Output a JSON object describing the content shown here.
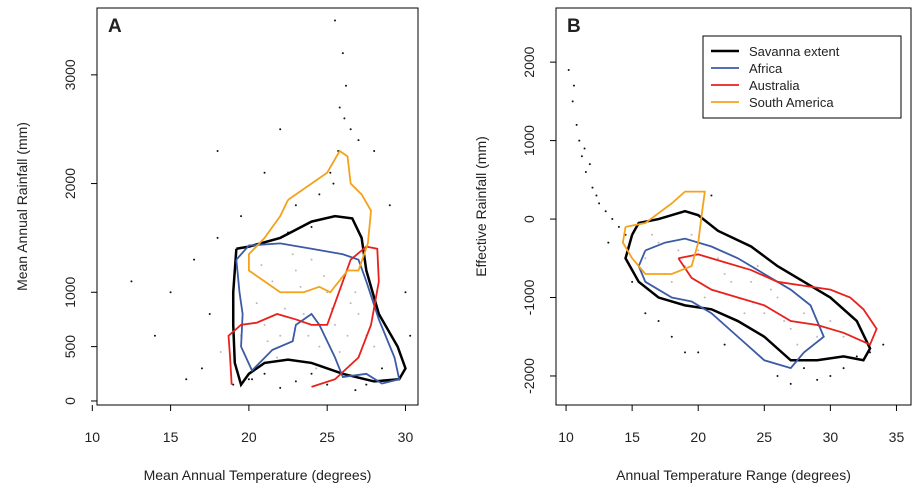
{
  "chart_data": [
    {
      "type": "scatter",
      "panel_label": "A",
      "x_label": "Mean Annual Temperature (degrees)",
      "y_label": "Mean Annual Rainfall (mm)",
      "xlim": [
        10.3,
        30.8
      ],
      "ylim": [
        -37,
        3615
      ],
      "xticks": [
        10,
        15,
        20,
        25,
        30
      ],
      "yticks": [
        0,
        500,
        1000,
        2000,
        3000
      ],
      "points": [
        {
          "color": "#bbbbbb",
          "x": [
            20.5,
            21,
            21.5,
            22,
            22.5,
            23,
            23.5,
            24,
            24.5,
            25,
            25.5,
            26,
            26.5,
            27,
            27.5,
            28,
            20.8,
            21.8,
            22.8,
            23.8,
            24.8,
            25.8,
            26.8,
            27.8,
            22.3,
            23.3,
            24.3,
            25.3,
            26.3,
            21.2,
            19.5,
            18.2
          ],
          "y": [
            900,
            700,
            1100,
            600,
            1000,
            1200,
            800,
            1300,
            500,
            1000,
            700,
            1100,
            900,
            800,
            600,
            500,
            1250,
            400,
            1350,
            600,
            1150,
            450,
            1000,
            700,
            850,
            1050,
            300,
            850,
            600,
            550,
            600,
            450
          ]
        },
        {
          "color": "#111111",
          "x": [
            15,
            16.5,
            17.5,
            18,
            12.5,
            14,
            16,
            17,
            19,
            20,
            21,
            22,
            23,
            24,
            25,
            25.5,
            26,
            26.2,
            25.8,
            26.5,
            27,
            28,
            29,
            30,
            30.3,
            24.5,
            25.2,
            25.7,
            26.1,
            25.4,
            23,
            19.5,
            18,
            21,
            22,
            28.5,
            29.5,
            27.5,
            26.8,
            24,
            22.5,
            20.2
          ],
          "y": [
            1000,
            1300,
            800,
            1500,
            1100,
            600,
            200,
            300,
            150,
            200,
            250,
            120,
            180,
            250,
            150,
            3500,
            3200,
            2900,
            2700,
            2500,
            2400,
            2300,
            1800,
            1000,
            600,
            1900,
            2100,
            2300,
            2600,
            2000,
            1800,
            1700,
            2300,
            2100,
            2500,
            300,
            200,
            150,
            100,
            1600,
            1550,
            200
          ]
        }
      ],
      "series": [
        {
          "name": "Savanna extent",
          "color": "#000000",
          "x": [
            19.2,
            20,
            22,
            24,
            25.5,
            26.6,
            27.2,
            27.5,
            28.3,
            29.5,
            30,
            29.6,
            28,
            26,
            24,
            22.5,
            21,
            20,
            19.5,
            19.1,
            19,
            19,
            19.2
          ],
          "y": [
            1400,
            1420,
            1500,
            1650,
            1700,
            1680,
            1500,
            1200,
            800,
            500,
            300,
            200,
            180,
            250,
            350,
            380,
            350,
            250,
            150,
            350,
            700,
            1000,
            1400
          ]
        },
        {
          "name": "Africa",
          "color": "#3b5ba5",
          "x": [
            19.2,
            20,
            22,
            24,
            26,
            27,
            27.5,
            28.3,
            29.3,
            29.6,
            28.5,
            27.5,
            26,
            25.5,
            24.5,
            24,
            23,
            22.8,
            21.5,
            20.2,
            19.5,
            19.6,
            19.4,
            19.2
          ],
          "y": [
            1300,
            1430,
            1450,
            1400,
            1350,
            1300,
            1100,
            750,
            400,
            200,
            160,
            250,
            220,
            400,
            700,
            800,
            700,
            550,
            470,
            280,
            500,
            800,
            1000,
            1300
          ]
        },
        {
          "name": "Australia",
          "color": "#e8211c",
          "x": [
            18.9,
            18.8,
            18.7,
            19.5,
            20.5,
            21.8,
            23,
            24,
            25,
            25.5,
            26,
            26.5,
            27.5,
            28.2,
            28.3,
            27.8,
            27,
            25.5,
            24
          ],
          "y": [
            150,
            400,
            600,
            700,
            720,
            800,
            750,
            700,
            700,
            900,
            1100,
            1300,
            1420,
            1400,
            1100,
            700,
            400,
            200,
            130
          ]
        },
        {
          "name": "South America",
          "color": "#f4a21c",
          "x": [
            22.5,
            23.5,
            25,
            25.8,
            26.3,
            26.5,
            27.2,
            27.8,
            27.6,
            27,
            26.3,
            25.2,
            24.5,
            23.5,
            22,
            21,
            20,
            20,
            21,
            22,
            22.5
          ],
          "y": [
            1850,
            1950,
            2100,
            2300,
            2250,
            2000,
            1900,
            1750,
            1450,
            1200,
            1200,
            1000,
            1050,
            1000,
            1000,
            1100,
            1200,
            1350,
            1500,
            1700,
            1850
          ]
        }
      ]
    },
    {
      "type": "scatter",
      "panel_label": "B",
      "x_label": "Annual Temperature Range (degrees)",
      "y_label": "Effective Rainfall (mm)",
      "xlim": [
        9.24,
        36.1
      ],
      "ylim": [
        -2370,
        2690
      ],
      "xticks": [
        10,
        15,
        20,
        25,
        30,
        35
      ],
      "yticks": [
        -2000,
        -1000,
        0,
        1000,
        2000
      ],
      "legend": "top-right",
      "points": [
        {
          "color": "#bbbbbb",
          "x": [
            16,
            17,
            18,
            19,
            20,
            21,
            22,
            23,
            24,
            25,
            26,
            27,
            28,
            29,
            17.5,
            19.5,
            21.5,
            23.5,
            25.5,
            27.5,
            18.5,
            20.5,
            22.5,
            24.5,
            26.5,
            16.5,
            30,
            31
          ],
          "y": [
            -500,
            -300,
            -800,
            -600,
            -400,
            -900,
            -700,
            -1000,
            -800,
            -1200,
            -1000,
            -1400,
            -1200,
            -1500,
            -700,
            -200,
            -500,
            -1200,
            -900,
            -1600,
            -400,
            -1000,
            -800,
            -600,
            -1300,
            -200,
            -1300,
            -1500
          ]
        },
        {
          "color": "#111111",
          "x": [
            10.2,
            10.5,
            10.8,
            11,
            11.2,
            11.5,
            12,
            12.5,
            13,
            13.5,
            14,
            14.5,
            11.8,
            12.3,
            13.2,
            10.6,
            11.4,
            15,
            16,
            18,
            20,
            22,
            26,
            28,
            30,
            32,
            33,
            34,
            27,
            29,
            31,
            19,
            21,
            17
          ],
          "y": [
            1900,
            1500,
            1200,
            1000,
            800,
            600,
            400,
            200,
            100,
            0,
            -100,
            -200,
            700,
            300,
            -300,
            1700,
            900,
            -800,
            -1200,
            -1500,
            -1700,
            -1600,
            -2000,
            -1900,
            -2000,
            -1750,
            -1700,
            -1600,
            -2100,
            -2050,
            -1900,
            -1700,
            300,
            -1300
          ]
        }
      ],
      "series": [
        {
          "name": "Savanna extent",
          "color": "#000000",
          "x": [
            15,
            15.5,
            17,
            19,
            20,
            21.5,
            24,
            26,
            28,
            30,
            32,
            33,
            32.5,
            31,
            29,
            27,
            25,
            23,
            21,
            19,
            17,
            15.5,
            14.5,
            15
          ],
          "y": [
            -200,
            -50,
            0,
            100,
            50,
            -150,
            -350,
            -600,
            -800,
            -1000,
            -1300,
            -1650,
            -1800,
            -1750,
            -1800,
            -1800,
            -1500,
            -1300,
            -1150,
            -1100,
            -1000,
            -800,
            -500,
            -200
          ]
        },
        {
          "name": "Africa",
          "color": "#3b5ba5",
          "x": [
            16,
            17.5,
            19,
            21,
            23,
            25,
            27,
            28.5,
            29.5,
            28,
            27,
            25,
            23,
            21,
            19.5,
            18,
            16,
            15.5,
            16
          ],
          "y": [
            -400,
            -300,
            -250,
            -350,
            -500,
            -700,
            -900,
            -1100,
            -1500,
            -1700,
            -1900,
            -1800,
            -1500,
            -1200,
            -1050,
            -1000,
            -800,
            -600,
            -400
          ]
        },
        {
          "name": "Australia",
          "color": "#e8211c",
          "x": [
            18.5,
            20,
            22,
            24,
            26,
            28,
            30,
            31.5,
            32.5,
            33.5,
            33,
            31,
            29,
            27,
            25,
            23,
            21,
            19.5,
            18.5
          ],
          "y": [
            -500,
            -450,
            -550,
            -650,
            -800,
            -850,
            -900,
            -1000,
            -1150,
            -1400,
            -1600,
            -1450,
            -1350,
            -1300,
            -1100,
            -1000,
            -900,
            -750,
            -500
          ]
        },
        {
          "name": "South America",
          "color": "#f4a21c",
          "x": [
            14.5,
            16,
            18,
            19,
            20.5,
            20.3,
            20,
            19.5,
            18,
            16,
            15,
            14.3,
            14.5
          ],
          "y": [
            -100,
            -50,
            200,
            350,
            350,
            100,
            -300,
            -600,
            -700,
            -700,
            -500,
            -300,
            -100
          ]
        }
      ]
    }
  ]
}
